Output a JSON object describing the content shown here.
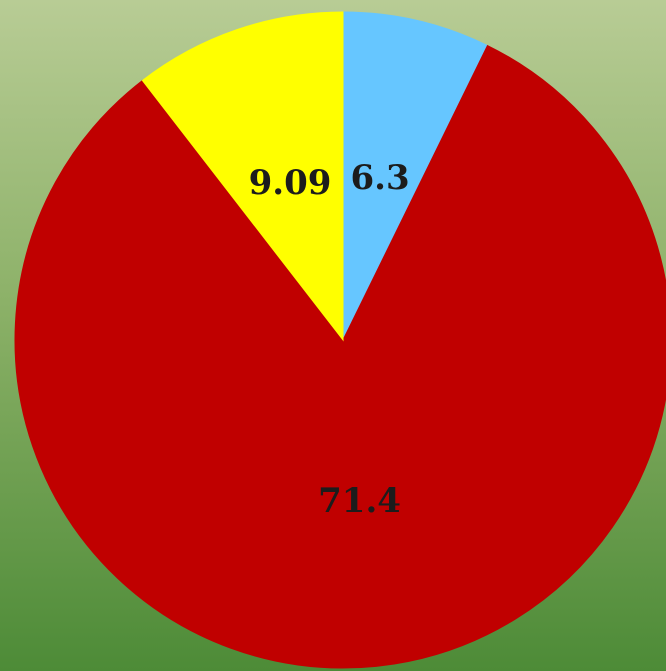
{
  "chart_data": {
    "type": "pie",
    "categories": [
      null,
      null,
      null
    ],
    "values": [
      6.3,
      71.4,
      9.09
    ],
    "colors": [
      "#66c6ff",
      "#c00000",
      "#ffff00"
    ]
  }
}
